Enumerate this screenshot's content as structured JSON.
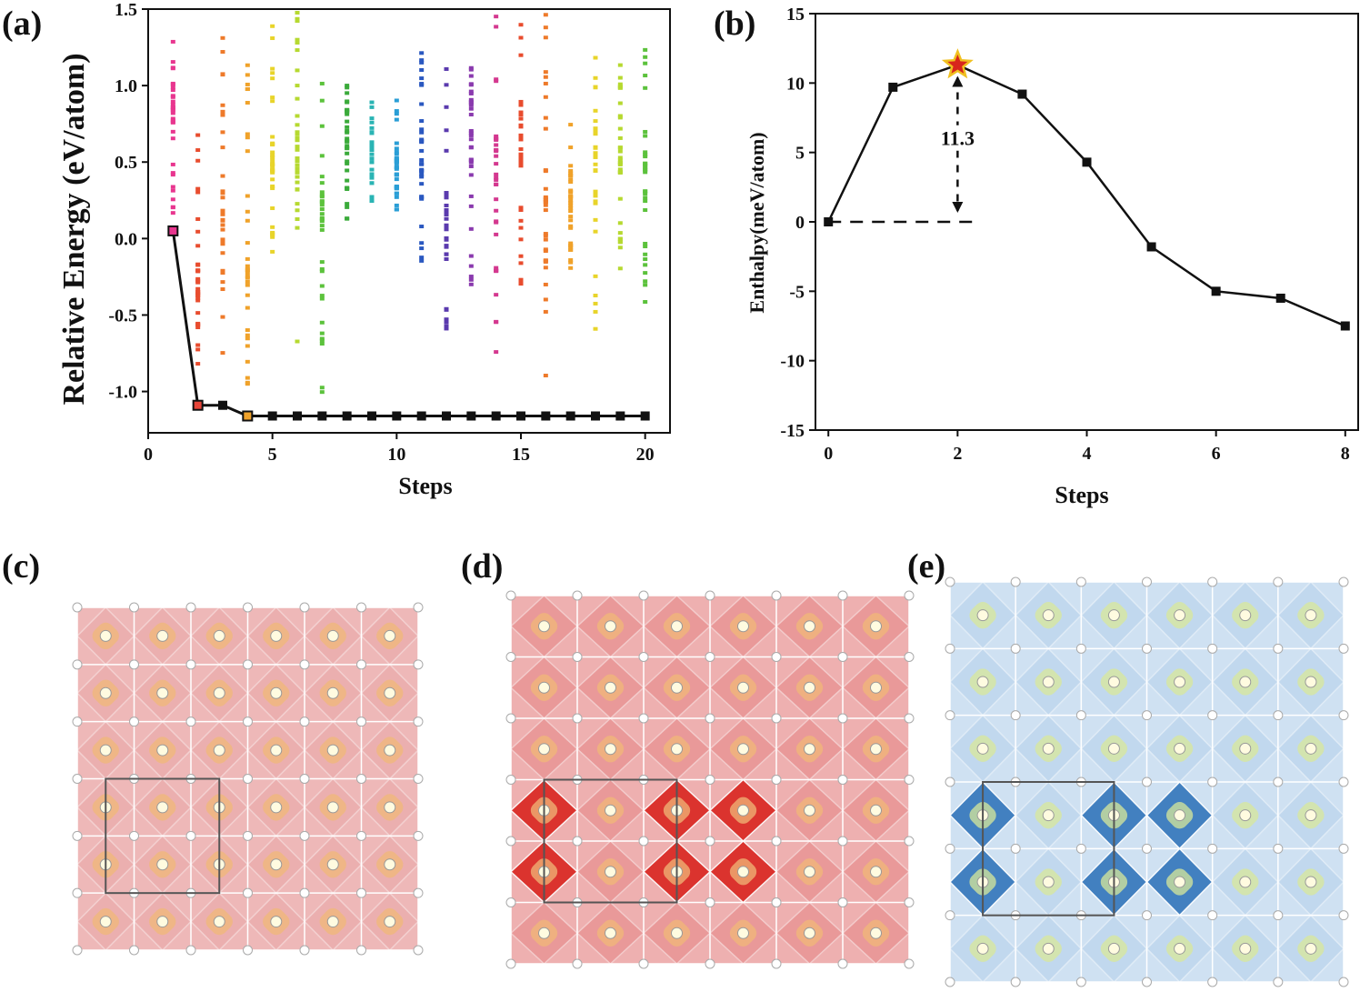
{
  "panel_labels": [
    "(a)",
    "(b)",
    "(c)",
    "(d)",
    "(e)"
  ],
  "chart_data": [
    {
      "id": "a",
      "type": "scatter",
      "xlabel": "Steps",
      "ylabel": "Relative Energy (eV/atom)",
      "xlim": [
        0,
        21
      ],
      "ylim": [
        -1.27,
        1.5
      ],
      "xticks": [
        0,
        5,
        10,
        15,
        20
      ],
      "yticks": [
        -1.0,
        -0.5,
        0.0,
        0.5,
        1.0,
        1.5
      ],
      "ytick_labels": [
        "-1.0",
        "-0.5",
        "0.0",
        "0.5",
        "1.0",
        "1.5"
      ],
      "best_line": {
        "x": [
          1,
          2,
          3,
          4,
          5,
          6,
          7,
          8,
          9,
          10,
          11,
          12,
          13,
          14,
          15,
          16,
          17,
          18,
          19,
          20
        ],
        "y": [
          0.05,
          -1.09,
          -1.09,
          -1.16,
          -1.16,
          -1.16,
          -1.16,
          -1.16,
          -1.16,
          -1.16,
          -1.16,
          -1.16,
          -1.16,
          -1.16,
          -1.16,
          -1.16,
          -1.16,
          -1.16,
          -1.16,
          -1.16
        ],
        "highlight": [
          {
            "x": 1,
            "color": "#e8368f"
          },
          {
            "x": 2,
            "color": "#e8463a"
          },
          {
            "x": 4,
            "color": "#f0a22a"
          }
        ]
      },
      "population_colors": [
        "#e8368f",
        "#e84c2e",
        "#ee7a2a",
        "#f0a22a",
        "#e8d42a",
        "#b6d930",
        "#5cc23c",
        "#3aaa3a",
        "#2ab4b4",
        "#2a9ed6",
        "#2a58c0",
        "#5a3aae",
        "#8a3aae",
        "#d4388f",
        "#e84c2e",
        "#ee7a2a",
        "#f0a22a",
        "#e8d42a",
        "#b6d930",
        "#5cc23c"
      ],
      "population_ranges": [
        [
          0.1,
          1.45
        ],
        [
          -0.95,
          0.7
        ],
        [
          -0.8,
          1.38
        ],
        [
          -1.0,
          1.38
        ],
        [
          -0.1,
          1.5
        ],
        [
          -0.85,
          1.5
        ],
        [
          -1.05,
          1.1
        ],
        [
          0.1,
          1.1
        ],
        [
          0.15,
          0.92
        ],
        [
          0.15,
          0.92
        ],
        [
          -0.15,
          1.22
        ],
        [
          -0.75,
          1.22
        ],
        [
          -0.3,
          1.5
        ],
        [
          -0.75,
          1.5
        ],
        [
          -0.32,
          1.4
        ],
        [
          -0.9,
          1.5
        ],
        [
          -0.3,
          1.22
        ],
        [
          -0.6,
          1.22
        ],
        [
          -0.2,
          1.28
        ],
        [
          -0.42,
          1.28
        ]
      ]
    },
    {
      "id": "b",
      "type": "line",
      "xlabel": "Steps",
      "ylabel": "Enthalpy(meV/atom)",
      "xlim": [
        -0.2,
        8.2
      ],
      "ylim": [
        -15,
        15
      ],
      "xticks": [
        0,
        2,
        4,
        6,
        8
      ],
      "yticks": [
        -15,
        -10,
        -5,
        0,
        5,
        10,
        15
      ],
      "series": [
        {
          "name": "Enthalpy",
          "x": [
            0,
            1,
            2,
            3,
            4,
            5,
            6,
            7,
            8
          ],
          "y": [
            0.0,
            9.7,
            11.3,
            9.2,
            4.3,
            -1.8,
            -5.0,
            -5.5,
            -7.5
          ]
        }
      ],
      "annotation": {
        "text": "11.3",
        "x": 2,
        "y": 11.3,
        "baseline_y": 0.0,
        "baseline_x_end": 2.35
      },
      "marker_color": "#111111",
      "star_color": "#d8261c",
      "star_edge_color": "#f0c020"
    }
  ],
  "structures": [
    {
      "id": "c",
      "color": "#e8a0a0",
      "accent": "#f0b070"
    },
    {
      "id": "d",
      "color": "#e07070",
      "accent": "#d81e18"
    },
    {
      "id": "e",
      "color": "#a8c8e8",
      "accent": "#2a70b8"
    }
  ]
}
